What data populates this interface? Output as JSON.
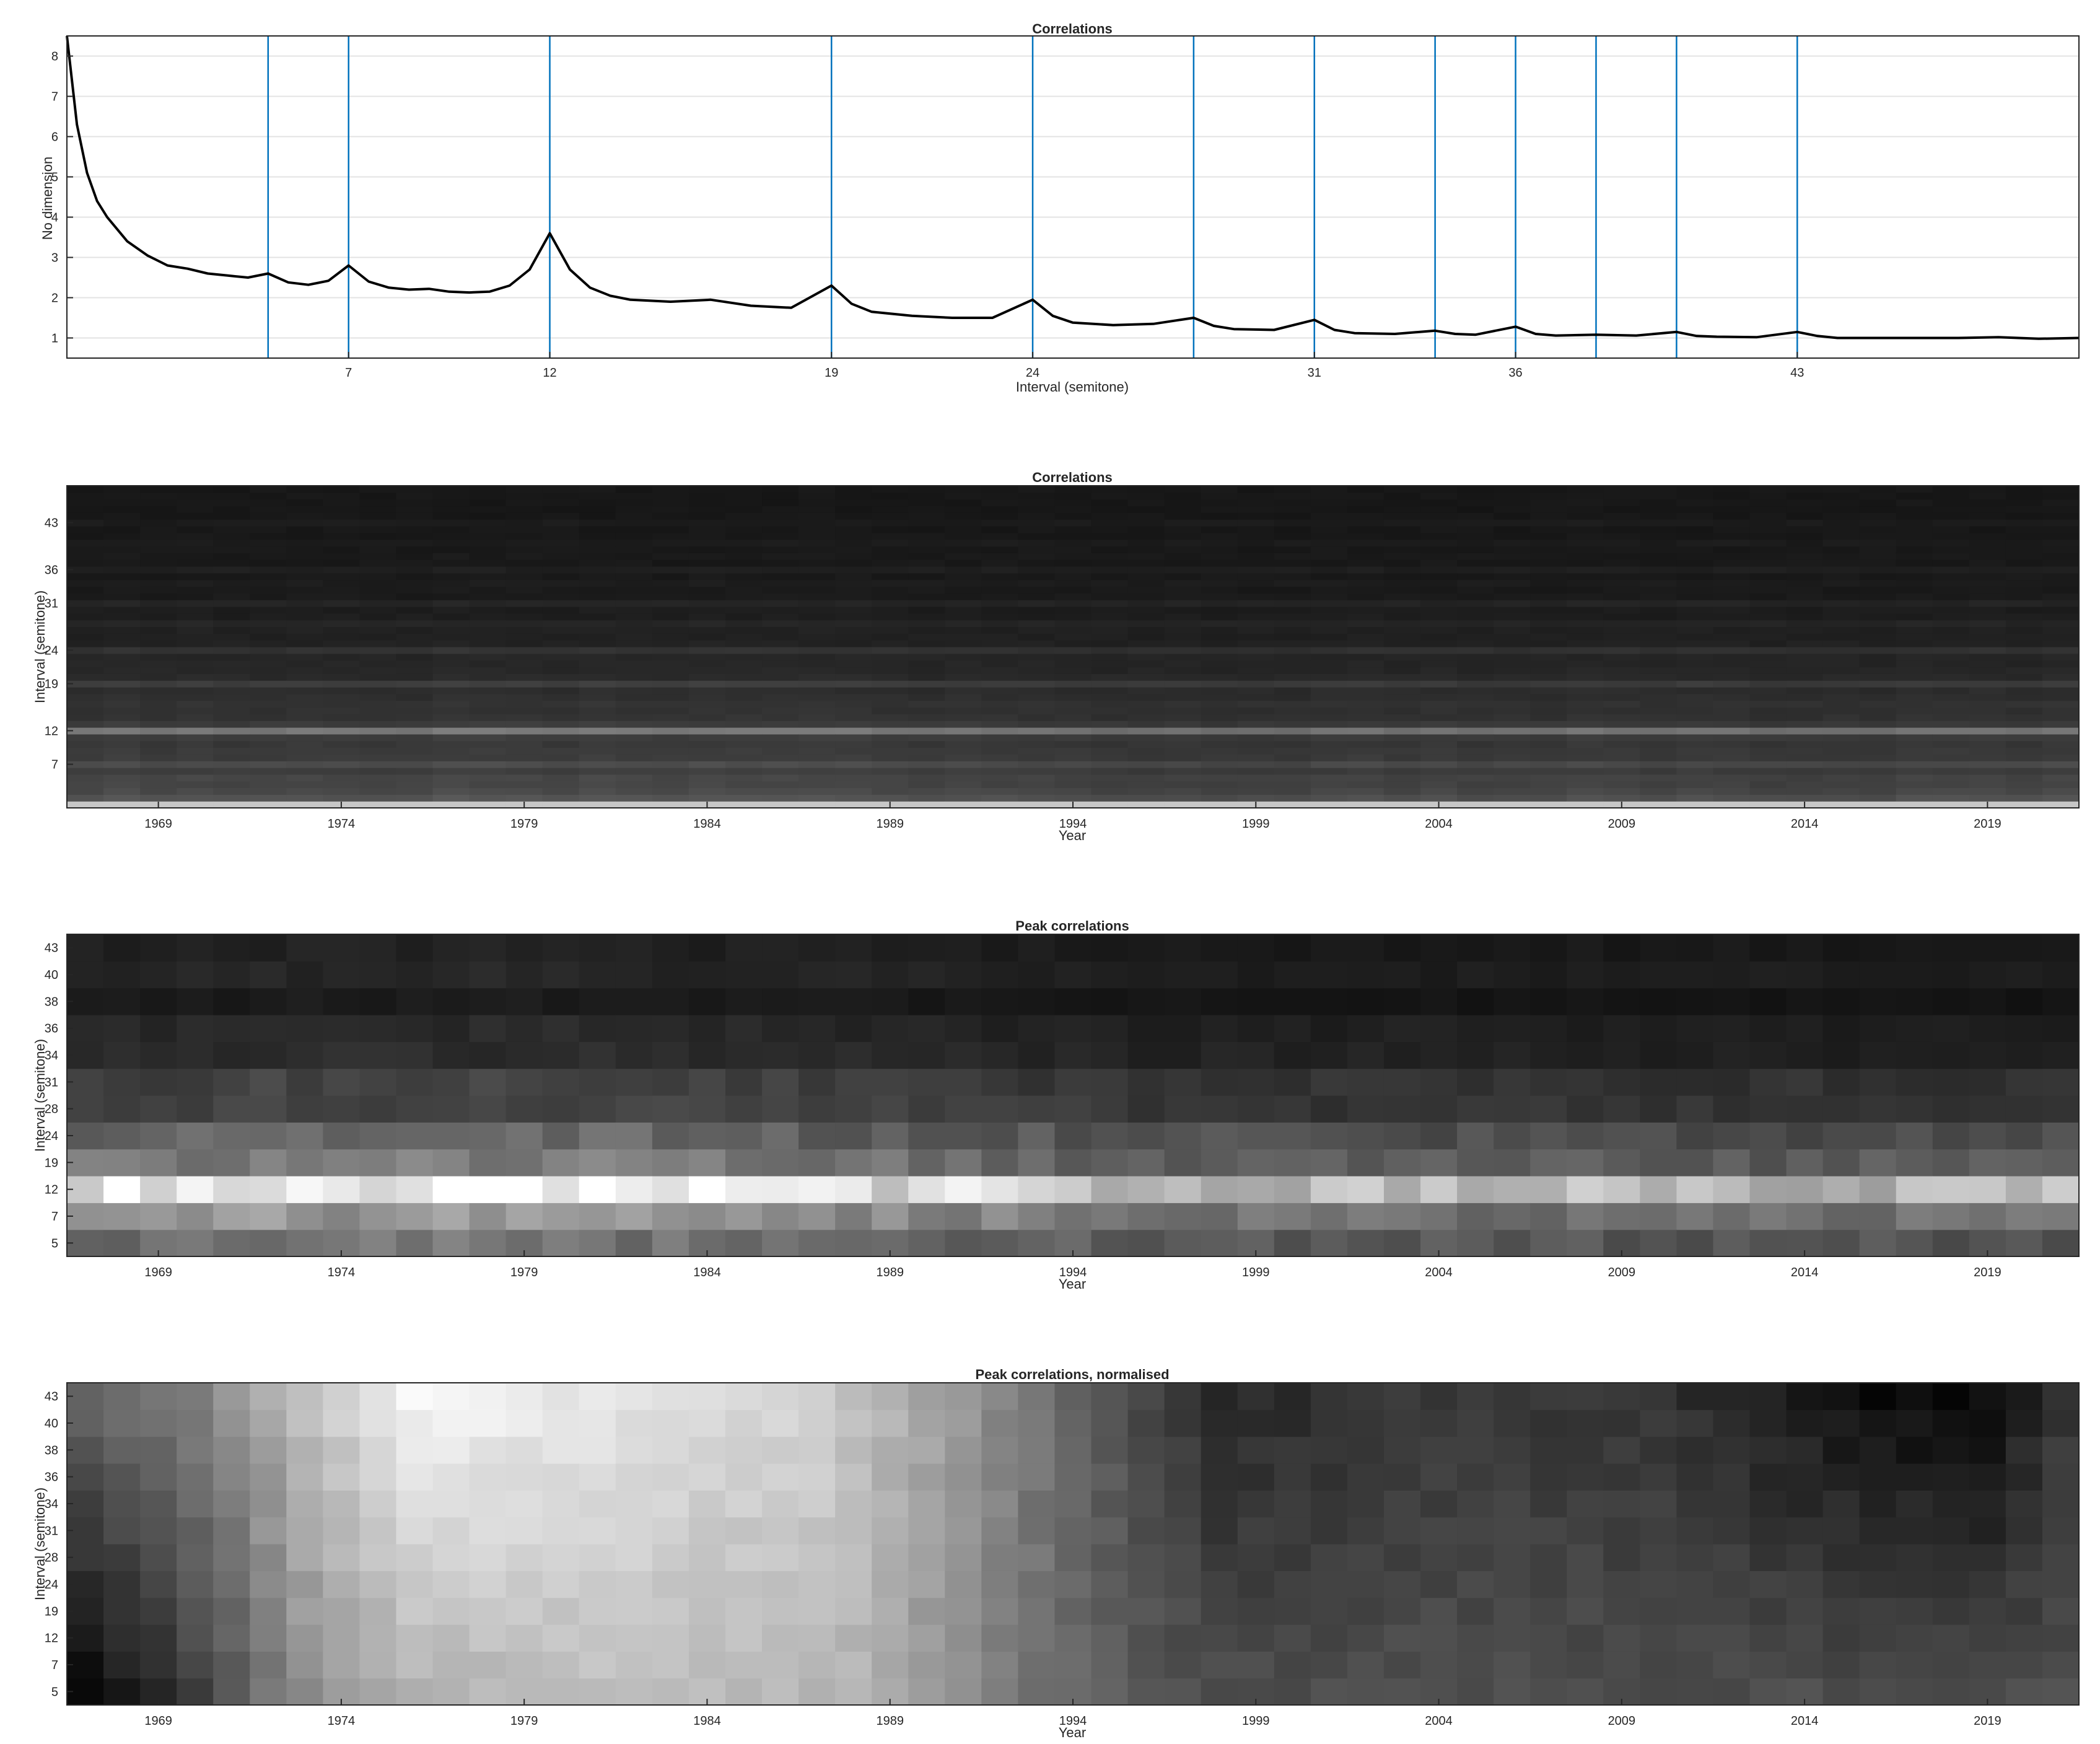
{
  "figure": {
    "panels": [
      {
        "id": "line",
        "title": "Correlations",
        "xlabel": "Interval (semitone)",
        "ylabel": "No dimension"
      },
      {
        "id": "heat1",
        "title": "Correlations",
        "xlabel": "Year",
        "ylabel": "Interval (semitone)"
      },
      {
        "id": "heat2",
        "title": "Peak correlations",
        "xlabel": "Year",
        "ylabel": "Interval (semitone)"
      },
      {
        "id": "heat3",
        "title": "Peak correlations, normalised",
        "xlabel": "Year",
        "ylabel": "Interval (semitone)"
      }
    ]
  },
  "chart_data": [
    {
      "type": "line",
      "title": "Correlations",
      "xlabel": "Interval (semitone)",
      "ylabel": "No dimension",
      "xlim": [
        0,
        50
      ],
      "ylim": [
        0.5,
        8.5
      ],
      "xticks": [
        7,
        12,
        19,
        24,
        31,
        36,
        43
      ],
      "yticks": [
        1,
        2,
        3,
        4,
        5,
        6,
        7,
        8
      ],
      "grid": "y",
      "line_color": "#000000",
      "vline_color": "#0072BD",
      "vlines": [
        5,
        7,
        12,
        19,
        24,
        28,
        31,
        34,
        36,
        38,
        40,
        43
      ],
      "x": [
        0,
        0.25,
        0.5,
        0.75,
        1,
        1.5,
        2,
        2.5,
        3,
        3.5,
        4,
        4.5,
        5,
        5.5,
        6,
        6.5,
        7,
        7.5,
        8,
        8.5,
        9,
        9.5,
        10,
        10.5,
        11,
        11.5,
        12,
        12.5,
        13,
        13.5,
        14,
        15,
        16,
        17,
        18,
        19,
        19.5,
        20,
        21,
        22,
        23,
        24,
        24.5,
        25,
        26,
        27,
        28,
        28.5,
        29,
        30,
        31,
        31.5,
        32,
        33,
        34,
        34.5,
        35,
        36,
        36.5,
        37,
        38,
        39,
        40,
        40.5,
        41,
        42,
        43,
        43.5,
        44,
        45,
        46,
        47,
        48,
        49,
        50
      ],
      "y": [
        8.6,
        6.3,
        5.1,
        4.4,
        4.0,
        3.4,
        3.05,
        2.8,
        2.72,
        2.6,
        2.55,
        2.5,
        2.6,
        2.38,
        2.32,
        2.42,
        2.8,
        2.4,
        2.25,
        2.2,
        2.22,
        2.15,
        2.13,
        2.15,
        2.3,
        2.7,
        3.6,
        2.7,
        2.25,
        2.05,
        1.95,
        1.9,
        1.95,
        1.8,
        1.75,
        2.3,
        1.85,
        1.65,
        1.55,
        1.5,
        1.5,
        1.95,
        1.55,
        1.38,
        1.32,
        1.35,
        1.5,
        1.3,
        1.22,
        1.2,
        1.45,
        1.2,
        1.12,
        1.1,
        1.18,
        1.1,
        1.08,
        1.28,
        1.1,
        1.06,
        1.08,
        1.06,
        1.15,
        1.05,
        1.03,
        1.02,
        1.15,
        1.05,
        1.0,
        1.0,
        1.0,
        1.0,
        1.02,
        0.98,
        1.0
      ]
    },
    {
      "type": "heatmap",
      "title": "Correlations",
      "xlabel": "Year",
      "ylabel": "Interval (semitone)",
      "colormap": "gray",
      "xlim": [
        1966.5,
        2021.5
      ],
      "xticks": [
        1969,
        1974,
        1979,
        1984,
        1989,
        1994,
        1999,
        2004,
        2009,
        2014,
        2019
      ],
      "yticks": [
        7,
        12,
        19,
        24,
        31,
        36,
        43
      ],
      "year_start": 1967,
      "year_end": 2021,
      "interval_start": 1,
      "interval_end": 48,
      "row_profile": "line series above",
      "value_scale": [
        0,
        1
      ]
    },
    {
      "type": "heatmap",
      "title": "Peak correlations",
      "xlabel": "Year",
      "ylabel": "Interval (semitone)",
      "colormap": "gray",
      "xticks": [
        1969,
        1974,
        1979,
        1984,
        1989,
        1994,
        1999,
        2004,
        2009,
        2014,
        2019
      ],
      "rows": [
        "5",
        "7",
        "12",
        "19",
        "24",
        "28",
        "31",
        "34",
        "36",
        "38",
        "40",
        "43"
      ],
      "year_start": 1967,
      "year_end": 2021,
      "row_levels": [
        0.42,
        0.55,
        0.9,
        0.45,
        0.38,
        0.25,
        0.24,
        0.16,
        0.15,
        0.1,
        0.14,
        0.12
      ],
      "era_levels": [
        [
          1967,
          1.0
        ],
        [
          1972,
          1.08
        ],
        [
          1979,
          1.1
        ],
        [
          1990,
          0.95
        ],
        [
          1996,
          0.85
        ],
        [
          2006,
          0.8
        ],
        [
          2021,
          0.78
        ]
      ]
    },
    {
      "type": "heatmap",
      "title": "Peak correlations, normalised",
      "xlabel": "Year",
      "ylabel": "Interval (semitone)",
      "colormap": "gray",
      "xticks": [
        1969,
        1974,
        1979,
        1984,
        1989,
        1994,
        1999,
        2004,
        2009,
        2014,
        2019
      ],
      "rows": [
        "5",
        "7",
        "12",
        "19",
        "24",
        "28",
        "31",
        "34",
        "36",
        "38",
        "40",
        "43"
      ],
      "year_start": 1967,
      "year_end": 2021,
      "trend_low": [
        [
          1967,
          0.02
        ],
        [
          1970,
          0.25
        ],
        [
          1973,
          0.55
        ],
        [
          1976,
          0.7
        ],
        [
          1982,
          0.75
        ],
        [
          1988,
          0.7
        ],
        [
          1991,
          0.55
        ],
        [
          1994,
          0.4
        ],
        [
          1998,
          0.3
        ],
        [
          2005,
          0.3
        ],
        [
          2021,
          0.3
        ]
      ],
      "trend_high": [
        [
          1967,
          0.4
        ],
        [
          1970,
          0.5
        ],
        [
          1973,
          0.75
        ],
        [
          1976,
          0.97
        ],
        [
          1981,
          0.9
        ],
        [
          1987,
          0.82
        ],
        [
          1990,
          0.65
        ],
        [
          1994,
          0.4
        ],
        [
          1998,
          0.15
        ],
        [
          2004,
          0.22
        ],
        [
          2010,
          0.2
        ],
        [
          2016,
          0.05
        ],
        [
          2019,
          0.04
        ],
        [
          2021,
          0.2
        ]
      ]
    }
  ]
}
